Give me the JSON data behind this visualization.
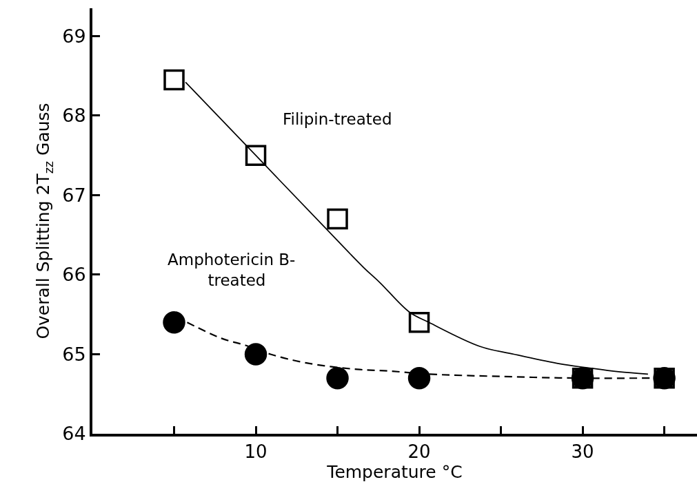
{
  "chart_data": {
    "type": "scatter",
    "xlabel": "Temperature °C",
    "ylabel": "Overall Splitting 2T$_{zz}$ Gauss",
    "xlim": [
      0,
      37
    ],
    "xticks": [
      {
        "value": 5,
        "label": null
      },
      10,
      {
        "value": 15,
        "label": null
      },
      20,
      {
        "value": 25,
        "label": null
      },
      30,
      {
        "value": 35,
        "label": null
      }
    ],
    "ylim": [
      64,
      69.35
    ],
    "yticks": [
      64,
      65,
      66,
      67,
      68,
      69
    ],
    "x": [
      5,
      10,
      15,
      20,
      30,
      35
    ],
    "series": [
      {
        "type": "line",
        "color": "#000000",
        "line_style": "solid",
        "x": [
          5.7,
          10.0,
          14.2,
          16.6,
          17.6,
          19.4,
          20.6,
          23.7,
          25.8,
          28.6,
          30.3,
          32.2,
          34.0
        ],
        "values": [
          68.42,
          67.5,
          66.6,
          66.09,
          65.9,
          65.53,
          65.4,
          65.1,
          65.0,
          64.88,
          64.83,
          64.78,
          64.75
        ]
      },
      {
        "type": "line",
        "color": "#000000",
        "line_style": "dashed",
        "x": [
          5.8,
          7.9,
          9.4,
          10.9,
          13.1,
          16.2,
          18.1,
          20.6,
          25.1,
          29.6,
          34.1
        ],
        "values": [
          65.4,
          65.2,
          65.11,
          65.0,
          64.89,
          64.81,
          64.79,
          64.75,
          64.72,
          64.7,
          64.7
        ]
      },
      {
        "name": "Filipin-treated",
        "color": "#000000",
        "marker": "square",
        "values": [
          68.45,
          67.5,
          66.7,
          65.4,
          64.7,
          64.7
        ]
      },
      {
        "name": "Amphotericin B-treated",
        "color": "#000000",
        "marker": "circle",
        "values": [
          65.4,
          65.0,
          64.7,
          64.7,
          64.7,
          64.7
        ]
      }
    ]
  }
}
